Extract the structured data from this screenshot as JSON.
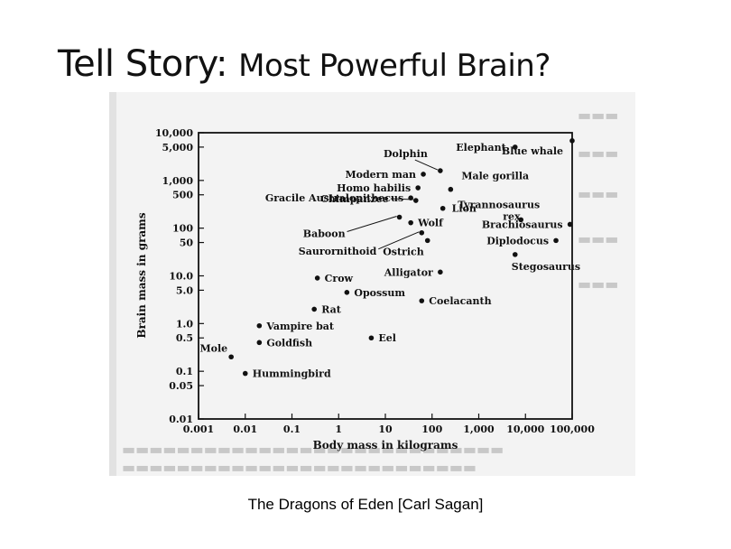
{
  "slide": {
    "title_part1": "Tell Story: ",
    "title_part2": "Most Powerful Brain?",
    "caption": "The Dragons of Eden [Carl Sagan]"
  },
  "chart_data": {
    "type": "scatter",
    "title": "",
    "xlabel": "Body mass in kilograms",
    "ylabel": "Brain mass in grams",
    "xscale": "log",
    "yscale": "log",
    "xlim": [
      0.001,
      100000
    ],
    "ylim": [
      0.01,
      10000
    ],
    "x_ticks": [
      "0.001",
      "0.01",
      "0.1",
      "1",
      "10",
      "100",
      "1,000",
      "10,000",
      "100,000"
    ],
    "y_ticks": [
      "0.01",
      "0.05",
      "0.1",
      "0.5",
      "1.0",
      "5.0",
      "10.0",
      "50",
      "100",
      "500",
      "1,000",
      "5,000",
      "10,000"
    ],
    "grid": false,
    "points": [
      {
        "label": "Elephant",
        "x": 6000,
        "y": 5000
      },
      {
        "label": "Blue whale",
        "x": 100000,
        "y": 6800
      },
      {
        "label": "Dolphin",
        "x": 150,
        "y": 1600
      },
      {
        "label": "Modern man",
        "x": 65,
        "y": 1350
      },
      {
        "label": "Male gorilla",
        "x": 250,
        "y": 650
      },
      {
        "label": "Homo habilis",
        "x": 50,
        "y": 700
      },
      {
        "label": "Tyrannosaurus rex",
        "x": 8000,
        "y": 150
      },
      {
        "label": "Gracile Australopithecus",
        "x": 35,
        "y": 430
      },
      {
        "label": "Lion",
        "x": 170,
        "y": 260
      },
      {
        "label": "Chimpanzee",
        "x": 45,
        "y": 380
      },
      {
        "label": "Baboon",
        "x": 20,
        "y": 170
      },
      {
        "label": "Wolf",
        "x": 35,
        "y": 130
      },
      {
        "label": "Brachiosaurus",
        "x": 90000,
        "y": 120
      },
      {
        "label": "Saurornithoid",
        "x": 60,
        "y": 80
      },
      {
        "label": "Ostrich",
        "x": 80,
        "y": 55
      },
      {
        "label": "Diplodocus",
        "x": 45000,
        "y": 55
      },
      {
        "label": "Alligator",
        "x": 150,
        "y": 12
      },
      {
        "label": "Stegosaurus",
        "x": 6000,
        "y": 28
      },
      {
        "label": "Crow",
        "x": 0.35,
        "y": 9
      },
      {
        "label": "Opossum",
        "x": 1.5,
        "y": 4.5
      },
      {
        "label": "Coelacanth",
        "x": 60,
        "y": 3
      },
      {
        "label": "Rat",
        "x": 0.3,
        "y": 2
      },
      {
        "label": "Vampire bat",
        "x": 0.02,
        "y": 0.9
      },
      {
        "label": "Eel",
        "x": 5,
        "y": 0.5
      },
      {
        "label": "Goldfish",
        "x": 0.02,
        "y": 0.4
      },
      {
        "label": "Mole",
        "x": 0.005,
        "y": 0.2
      },
      {
        "label": "Hummingbird",
        "x": 0.01,
        "y": 0.09
      }
    ]
  }
}
